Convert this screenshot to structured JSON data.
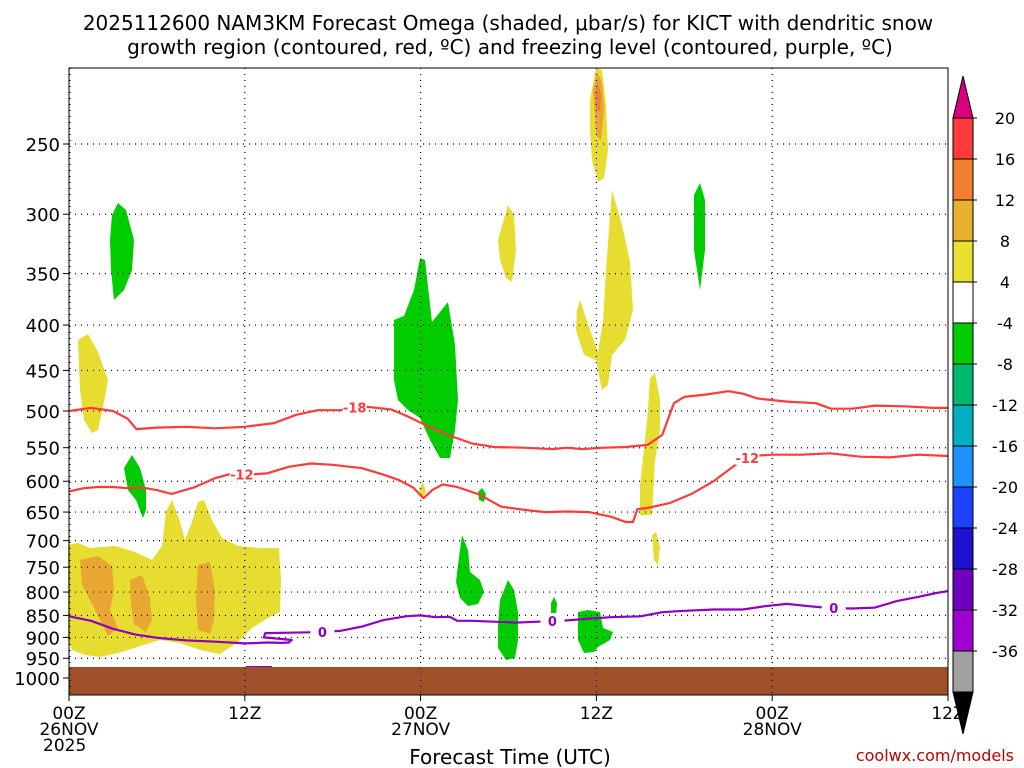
{
  "chart_data": {
    "type": "heatmap",
    "title_line1": "2025112600 NAM3KM Forecast Omega (shaded, μbar/s) for KICT with dendritic snow",
    "title_line2": "growth region (contoured, red, ºC) and freezing level (contoured, purple, ºC)",
    "xlabel": "Forecast Time (UTC)",
    "credit": "coolwx.com/models",
    "x_ticks": [
      {
        "hour": 0,
        "lines": [
          "00Z",
          "26NOV",
          "2025"
        ]
      },
      {
        "hour": 12,
        "lines": [
          "12Z"
        ]
      },
      {
        "hour": 24,
        "lines": [
          "00Z",
          "27NOV"
        ]
      },
      {
        "hour": 36,
        "lines": [
          "12Z"
        ]
      },
      {
        "hour": 48,
        "lines": [
          "00Z",
          "28NOV"
        ]
      },
      {
        "hour": 60,
        "lines": [
          "12Z"
        ]
      }
    ],
    "xlim": [
      0,
      60
    ],
    "ylim_hpa": [
      1000,
      200
    ],
    "y_ticks": [
      250,
      300,
      350,
      400,
      450,
      500,
      550,
      600,
      650,
      700,
      750,
      800,
      850,
      900,
      950,
      1000
    ],
    "colorbar": {
      "labels": [
        "20",
        "16",
        "12",
        "8",
        "4",
        "-4",
        "-8",
        "-12",
        "-16",
        "-20",
        "-24",
        "-28",
        "-32",
        "-36"
      ],
      "colors": [
        "#d8007f",
        "#ff3a3a",
        "#f08030",
        "#e8b030",
        "#e8e030",
        "#ffffff",
        "#00cc00",
        "#00b870",
        "#00b0c0",
        "#1e90ff",
        "#1e40ff",
        "#2010d0",
        "#7000c0",
        "#a000d0",
        "#a0a0a0",
        "#000000"
      ]
    },
    "contours": [
      {
        "name": "-18C",
        "label": "-18",
        "color": "#ff3a3a",
        "points": [
          [
            0,
            500
          ],
          [
            1.5,
            496
          ],
          [
            3,
            500
          ],
          [
            4,
            510
          ],
          [
            4.6,
            524
          ],
          [
            6,
            522
          ],
          [
            8,
            521
          ],
          [
            10,
            523
          ],
          [
            12,
            521
          ],
          [
            14,
            516
          ],
          [
            15.5,
            505
          ],
          [
            17,
            499
          ],
          [
            18.5,
            499
          ],
          [
            20,
            494
          ],
          [
            22,
            498
          ],
          [
            23,
            506
          ],
          [
            24.5,
            520
          ],
          [
            26,
            533
          ],
          [
            27.5,
            544
          ],
          [
            29,
            549
          ],
          [
            31,
            550
          ],
          [
            33,
            552
          ],
          [
            34,
            550
          ],
          [
            35,
            552
          ],
          [
            36.5,
            550
          ],
          [
            38,
            549
          ],
          [
            39.5,
            546
          ],
          [
            40.5,
            532
          ],
          [
            41,
            505
          ],
          [
            41.3,
            490
          ],
          [
            42,
            482
          ],
          [
            43.5,
            479
          ],
          [
            45,
            475
          ],
          [
            46,
            478
          ],
          [
            47,
            484
          ],
          [
            49,
            488
          ],
          [
            51,
            490
          ],
          [
            52,
            497
          ],
          [
            53.5,
            497
          ],
          [
            55,
            493
          ],
          [
            57,
            494
          ],
          [
            59,
            496
          ],
          [
            60,
            496
          ]
        ]
      },
      {
        "name": "-12C",
        "label": "-12",
        "color": "#ff3a3a",
        "points": [
          [
            0,
            616
          ],
          [
            1,
            611
          ],
          [
            2,
            609
          ],
          [
            3,
            609
          ],
          [
            4,
            611
          ],
          [
            5,
            610
          ],
          [
            6,
            614
          ],
          [
            7,
            620
          ],
          [
            8.5,
            610
          ],
          [
            10,
            595
          ],
          [
            11,
            589
          ],
          [
            12,
            590
          ],
          [
            13.5,
            588
          ],
          [
            15,
            578
          ],
          [
            16.5,
            573
          ],
          [
            18,
            575
          ],
          [
            20,
            580
          ],
          [
            21.5,
            590
          ],
          [
            22.5,
            598
          ],
          [
            23.5,
            610
          ],
          [
            24.2,
            627
          ],
          [
            24.8,
            614
          ],
          [
            25.5,
            605
          ],
          [
            26.5,
            609
          ],
          [
            28,
            621
          ],
          [
            29.5,
            641
          ],
          [
            31,
            646
          ],
          [
            32.5,
            650
          ],
          [
            34,
            649
          ],
          [
            35.5,
            650
          ],
          [
            37,
            658
          ],
          [
            38,
            667
          ],
          [
            38.5,
            667
          ],
          [
            38.8,
            645
          ],
          [
            39.5,
            643
          ],
          [
            41,
            635
          ],
          [
            42.5,
            620
          ],
          [
            44,
            600
          ],
          [
            45.5,
            575
          ],
          [
            46.5,
            562
          ],
          [
            48,
            560
          ],
          [
            50,
            560
          ],
          [
            52,
            558
          ],
          [
            54,
            563
          ],
          [
            56,
            564
          ],
          [
            58,
            560
          ],
          [
            60,
            562
          ]
        ]
      },
      {
        "name": "0C",
        "label": "0",
        "color": "#9000c0",
        "points": [
          [
            0,
            852
          ],
          [
            1.5,
            862
          ],
          [
            3,
            880
          ],
          [
            4.5,
            893
          ],
          [
            6,
            901
          ],
          [
            8,
            907
          ],
          [
            10,
            910
          ],
          [
            12,
            914
          ],
          [
            13,
            913
          ],
          [
            13.5,
            912
          ],
          [
            14.5,
            913
          ],
          [
            15,
            912
          ],
          [
            15.2,
            906
          ],
          [
            14.6,
            904
          ],
          [
            13.3,
            900
          ],
          [
            13.4,
            890
          ],
          [
            15,
            889
          ],
          [
            17,
            888
          ],
          [
            18.5,
            885
          ],
          [
            20,
            875
          ],
          [
            21.5,
            860
          ],
          [
            23,
            852
          ],
          [
            24,
            850
          ],
          [
            25,
            854
          ],
          [
            26,
            853
          ],
          [
            26.5,
            862
          ],
          [
            27.5,
            862
          ],
          [
            29,
            864
          ],
          [
            30.5,
            866
          ],
          [
            32,
            864
          ],
          [
            34,
            861
          ],
          [
            35.5,
            857
          ],
          [
            37,
            854
          ],
          [
            39,
            852
          ],
          [
            40.5,
            843
          ],
          [
            42,
            840
          ],
          [
            44,
            837
          ],
          [
            46,
            837
          ],
          [
            47.5,
            830
          ],
          [
            49,
            825
          ],
          [
            50.5,
            830
          ],
          [
            52,
            834
          ],
          [
            53.5,
            835
          ],
          [
            55,
            833
          ],
          [
            56.5,
            819
          ],
          [
            58,
            810
          ],
          [
            59.2,
            802
          ],
          [
            60,
            798
          ]
        ]
      }
    ],
    "surface": {
      "label": "terrain",
      "color": "#a05028",
      "top_hpa": 970
    }
  }
}
